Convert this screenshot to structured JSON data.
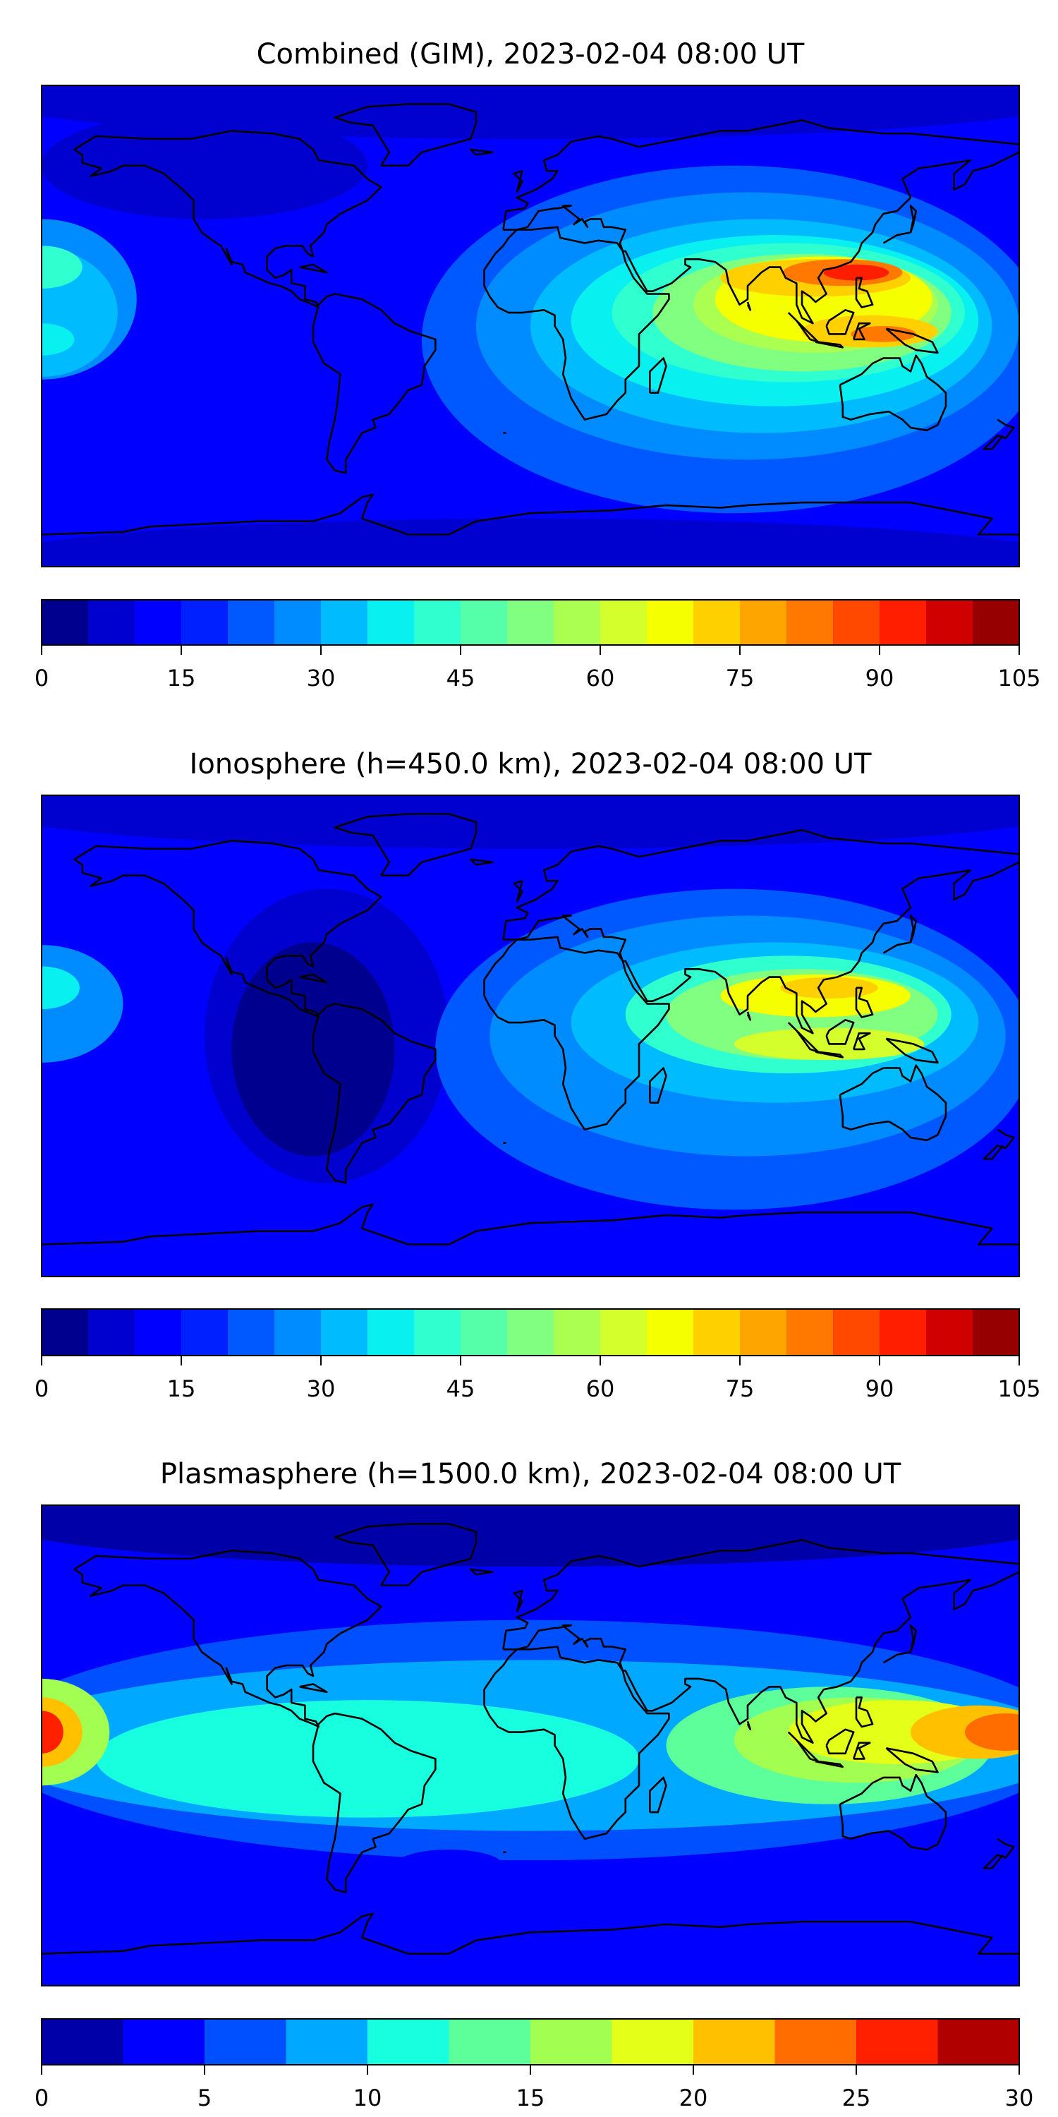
{
  "chart_data": [
    {
      "type": "heatmap",
      "title": "Combined (GIM), 2023-02-04 08:00 UT",
      "projection": "PlateCarree",
      "xlim": [
        -180,
        180
      ],
      "ylim": [
        -90,
        90
      ],
      "colorbar": {
        "levels_min": 0,
        "levels_max": 105,
        "step": 5,
        "ticks": [
          "0",
          "15",
          "30",
          "45",
          "60",
          "75",
          "90",
          "105"
        ],
        "colors": [
          "#00008f",
          "#0000cf",
          "#0000ff",
          "#0020ff",
          "#0058ff",
          "#008cff",
          "#00bcff",
          "#08f0f0",
          "#30ffd0",
          "#55ffaa",
          "#80ff80",
          "#aaff50",
          "#d4ff2c",
          "#f5ff00",
          "#ffd000",
          "#ffa500",
          "#ff7800",
          "#ff4800",
          "#ff1e00",
          "#d00000",
          "#960000"
        ]
      },
      "background_value": 12,
      "features": [
        {
          "lon": 0,
          "lat": 85,
          "rlon": 200,
          "rlat": 15,
          "value": 7
        },
        {
          "lon": 0,
          "lat": -88,
          "rlon": 200,
          "rlat": 16,
          "value": 7
        },
        {
          "lon": -120,
          "lat": 60,
          "rlon": 60,
          "rlat": 20,
          "value": 5
        },
        {
          "lon": 75,
          "lat": -5,
          "rlon": 115,
          "rlat": 65,
          "value": 22
        },
        {
          "lon": 80,
          "lat": 0,
          "rlon": 100,
          "rlat": 50,
          "value": 28
        },
        {
          "lon": 85,
          "lat": 0,
          "rlon": 85,
          "rlat": 40,
          "value": 33
        },
        {
          "lon": 90,
          "lat": 2,
          "rlon": 75,
          "rlat": 32,
          "value": 38
        },
        {
          "lon": 95,
          "lat": 5,
          "rlon": 65,
          "rlat": 26,
          "value": 43
        },
        {
          "lon": 100,
          "lat": 5,
          "rlon": 55,
          "rlat": 22,
          "value": 50
        },
        {
          "lon": 105,
          "lat": 8,
          "rlon": 45,
          "rlat": 18,
          "value": 58
        },
        {
          "lon": 108,
          "lat": 10,
          "rlon": 40,
          "rlat": 16,
          "value": 66
        },
        {
          "lon": 105,
          "lat": 18,
          "rlon": 35,
          "rlat": 7,
          "value": 72
        },
        {
          "lon": 115,
          "lat": 20,
          "rlon": 22,
          "rlat": 5,
          "value": 82
        },
        {
          "lon": 120,
          "lat": 20,
          "rlon": 12,
          "rlat": 3,
          "value": 92
        },
        {
          "lon": 125,
          "lat": -2,
          "rlon": 25,
          "rlat": 6,
          "value": 72
        },
        {
          "lon": 130,
          "lat": -3,
          "rlon": 12,
          "rlat": 3,
          "value": 82
        },
        {
          "lon": -180,
          "lat": 10,
          "rlon": 35,
          "rlat": 30,
          "value": 28
        },
        {
          "lon": -180,
          "lat": 5,
          "rlon": 28,
          "rlat": 24,
          "value": 33
        },
        {
          "lon": -180,
          "lat": 22,
          "rlon": 15,
          "rlat": 8,
          "value": 43
        },
        {
          "lon": -180,
          "lat": -5,
          "rlon": 12,
          "rlat": 6,
          "value": 38
        }
      ]
    },
    {
      "type": "heatmap",
      "title": "Ionosphere  (h=450.0 km), 2023-02-04 08:00 UT",
      "projection": "PlateCarree",
      "xlim": [
        -180,
        180
      ],
      "ylim": [
        -90,
        90
      ],
      "colorbar": {
        "levels_min": 0,
        "levels_max": 105,
        "step": 5,
        "ticks": [
          "0",
          "15",
          "30",
          "45",
          "60",
          "75",
          "90",
          "105"
        ],
        "colors": [
          "#00008f",
          "#0000cf",
          "#0000ff",
          "#0020ff",
          "#0058ff",
          "#008cff",
          "#00bcff",
          "#08f0f0",
          "#30ffd0",
          "#55ffaa",
          "#80ff80",
          "#aaff50",
          "#d4ff2c",
          "#f5ff00",
          "#ffd000",
          "#ffa500",
          "#ff7800",
          "#ff4800",
          "#ff1e00",
          "#d00000",
          "#960000"
        ]
      },
      "background_value": 12,
      "features": [
        {
          "lon": 0,
          "lat": 85,
          "rlon": 200,
          "rlat": 15,
          "value": 7
        },
        {
          "lon": -75,
          "lat": 0,
          "rlon": 45,
          "rlat": 55,
          "value": 7
        },
        {
          "lon": -80,
          "lat": -5,
          "rlon": 30,
          "rlat": 40,
          "value": 3
        },
        {
          "lon": 75,
          "lat": -5,
          "rlon": 110,
          "rlat": 60,
          "value": 22
        },
        {
          "lon": 80,
          "lat": 0,
          "rlon": 95,
          "rlat": 45,
          "value": 28
        },
        {
          "lon": 90,
          "lat": 5,
          "rlon": 75,
          "rlat": 30,
          "value": 33
        },
        {
          "lon": 95,
          "lat": 8,
          "rlon": 60,
          "rlat": 22,
          "value": 42
        },
        {
          "lon": 100,
          "lat": 8,
          "rlon": 50,
          "rlat": 17,
          "value": 52
        },
        {
          "lon": 105,
          "lat": 15,
          "rlon": 35,
          "rlat": 8,
          "value": 66
        },
        {
          "lon": 110,
          "lat": 18,
          "rlon": 18,
          "rlat": 4,
          "value": 74
        },
        {
          "lon": 110,
          "lat": -3,
          "rlon": 35,
          "rlat": 6,
          "value": 62
        },
        {
          "lon": -180,
          "lat": 12,
          "rlon": 30,
          "rlat": 22,
          "value": 28
        },
        {
          "lon": -180,
          "lat": 18,
          "rlon": 14,
          "rlat": 8,
          "value": 38
        }
      ]
    },
    {
      "type": "heatmap",
      "title": "Plasmasphere (h=1500.0 km), 2023-02-04 08:00 UT",
      "projection": "PlateCarree",
      "xlim": [
        -180,
        180
      ],
      "ylim": [
        -90,
        90
      ],
      "colorbar": {
        "levels_min": 0,
        "levels_max": 30,
        "step": 2.5,
        "ticks": [
          "0",
          "5",
          "10",
          "15",
          "20",
          "25",
          "30"
        ],
        "colors": [
          "#0000a8",
          "#0000ff",
          "#0050ff",
          "#00a8ff",
          "#18ffe0",
          "#5cff9a",
          "#a2ff52",
          "#e4ff18",
          "#ffc000",
          "#ff6c00",
          "#ff2000",
          "#b00000"
        ]
      },
      "background_value": 4,
      "features": [
        {
          "lon": 0,
          "lat": 85,
          "rlon": 200,
          "rlat": 18,
          "value": 1
        },
        {
          "lon": 0,
          "lat": -88,
          "rlon": 200,
          "rlat": 12,
          "value": 3
        },
        {
          "lon": 0,
          "lat": 2,
          "rlon": 200,
          "rlat": 45,
          "value": 6
        },
        {
          "lon": 0,
          "lat": 0,
          "rlon": 200,
          "rlat": 32,
          "value": 9
        },
        {
          "lon": -60,
          "lat": -5,
          "rlon": 100,
          "rlat": 22,
          "value": 11
        },
        {
          "lon": 110,
          "lat": 0,
          "rlon": 60,
          "rlat": 22,
          "value": 14
        },
        {
          "lon": 120,
          "lat": 2,
          "rlon": 45,
          "rlat": 16,
          "value": 17
        },
        {
          "lon": 135,
          "lat": 5,
          "rlon": 40,
          "rlat": 12,
          "value": 19
        },
        {
          "lon": 165,
          "lat": 5,
          "rlon": 25,
          "rlat": 10,
          "value": 21
        },
        {
          "lon": 175,
          "lat": 5,
          "rlon": 15,
          "rlat": 7,
          "value": 23
        },
        {
          "lon": -180,
          "lat": 5,
          "rlon": 25,
          "rlat": 20,
          "value": 16
        },
        {
          "lon": -180,
          "lat": 5,
          "rlon": 15,
          "rlat": 13,
          "value": 21
        },
        {
          "lon": -180,
          "lat": 5,
          "rlon": 8,
          "rlat": 8,
          "value": 26
        },
        {
          "lon": -30,
          "lat": -45,
          "rlon": 20,
          "rlat": 6,
          "value": 4
        }
      ]
    }
  ]
}
